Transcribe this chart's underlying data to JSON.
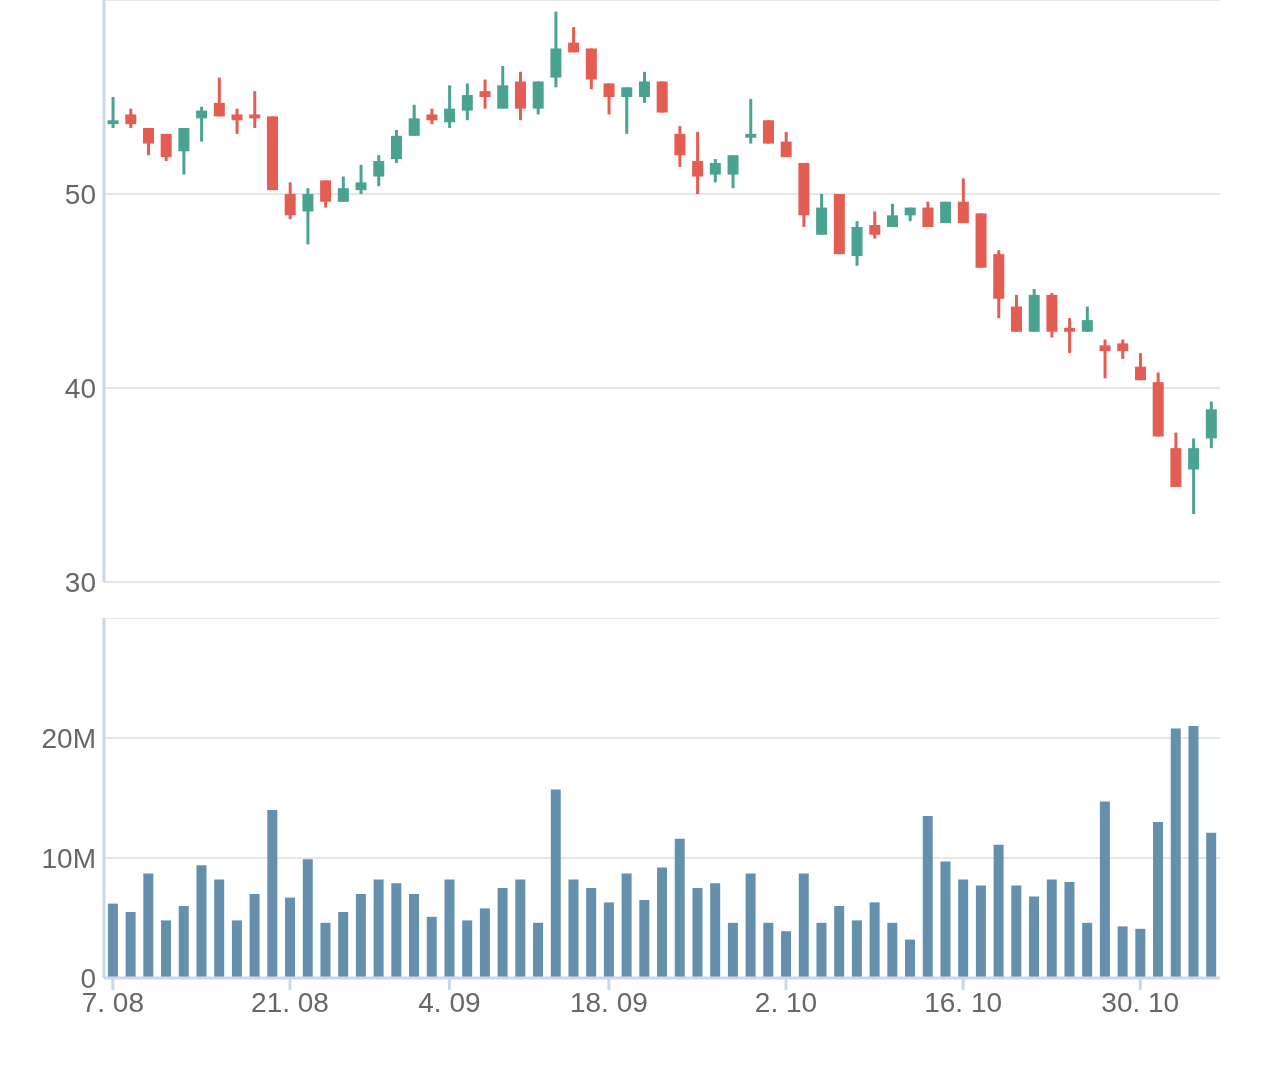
{
  "chart_data": [
    {
      "type": "candlestick",
      "categories": [
        null,
        null,
        null,
        null,
        null,
        null,
        null,
        null,
        null,
        null,
        null,
        null,
        null,
        null,
        null,
        null,
        null,
        null,
        null,
        null,
        null,
        null,
        null,
        null,
        null,
        null,
        null,
        null,
        null,
        null,
        null,
        null,
        null,
        null,
        null,
        null,
        null,
        null,
        null,
        null,
        null,
        null,
        null,
        null,
        null,
        null,
        null,
        null,
        null,
        null,
        null,
        null,
        null,
        null,
        null,
        null,
        null,
        null,
        null,
        null,
        null,
        null,
        null
      ],
      "ohlc": [
        [
          53.6,
          55.0,
          53.4,
          53.8
        ],
        [
          54.1,
          54.4,
          53.4,
          53.6
        ],
        [
          53.4,
          53.4,
          52.0,
          52.6
        ],
        [
          53.1,
          53.1,
          51.7,
          51.9
        ],
        [
          52.2,
          53.4,
          51.0,
          53.4
        ],
        [
          53.9,
          54.5,
          52.7,
          54.3
        ],
        [
          54.7,
          56.0,
          54.0,
          54.0
        ],
        [
          54.1,
          54.4,
          53.1,
          53.8
        ],
        [
          54.1,
          55.3,
          53.4,
          53.9
        ],
        [
          54.0,
          54.0,
          50.2,
          50.2
        ],
        [
          50.0,
          50.6,
          48.7,
          48.9
        ],
        [
          49.1,
          50.3,
          47.4,
          50.0
        ],
        [
          50.7,
          50.7,
          49.3,
          49.6
        ],
        [
          49.6,
          50.9,
          49.6,
          50.3
        ],
        [
          50.2,
          51.5,
          50.0,
          50.6
        ],
        [
          50.9,
          52.0,
          50.4,
          51.7
        ],
        [
          51.8,
          53.3,
          51.6,
          53.0
        ],
        [
          53.0,
          54.6,
          53.0,
          53.9
        ],
        [
          54.1,
          54.4,
          53.6,
          53.8
        ],
        [
          53.7,
          55.6,
          53.4,
          54.4
        ],
        [
          54.3,
          55.7,
          53.8,
          55.1
        ],
        [
          55.3,
          55.9,
          54.4,
          55.0
        ],
        [
          54.4,
          56.6,
          54.4,
          55.6
        ],
        [
          55.8,
          56.3,
          53.8,
          54.4
        ],
        [
          54.4,
          55.8,
          54.1,
          55.8
        ],
        [
          56.0,
          59.4,
          55.5,
          57.5
        ],
        [
          57.8,
          58.6,
          57.3,
          57.3
        ],
        [
          57.5,
          57.5,
          55.4,
          55.9
        ],
        [
          55.7,
          55.7,
          54.1,
          55.0
        ],
        [
          55.0,
          55.5,
          53.1,
          55.5
        ],
        [
          55.0,
          56.3,
          54.7,
          55.8
        ],
        [
          55.8,
          55.8,
          54.2,
          54.2
        ],
        [
          53.1,
          53.5,
          51.4,
          52.0
        ],
        [
          51.7,
          53.2,
          50.0,
          50.9
        ],
        [
          51.0,
          51.8,
          50.6,
          51.6
        ],
        [
          51.0,
          52.0,
          50.3,
          52.0
        ],
        [
          52.9,
          54.9,
          52.6,
          53.1
        ],
        [
          53.8,
          53.8,
          52.6,
          52.6
        ],
        [
          52.7,
          53.2,
          51.9,
          51.9
        ],
        [
          51.6,
          51.6,
          48.3,
          48.9
        ],
        [
          47.9,
          50.0,
          47.9,
          49.3
        ],
        [
          50.0,
          50.0,
          46.9,
          46.9
        ],
        [
          46.8,
          48.6,
          46.3,
          48.3
        ],
        [
          48.4,
          49.1,
          47.7,
          47.9
        ],
        [
          48.3,
          49.5,
          48.3,
          48.9
        ],
        [
          48.9,
          49.3,
          48.6,
          49.3
        ],
        [
          49.3,
          49.6,
          48.3,
          48.3
        ],
        [
          48.5,
          49.6,
          48.5,
          49.6
        ],
        [
          49.6,
          50.8,
          48.5,
          48.5
        ],
        [
          49.0,
          49.0,
          46.2,
          46.2
        ],
        [
          46.9,
          47.1,
          43.6,
          44.6
        ],
        [
          44.2,
          44.8,
          42.9,
          42.9
        ],
        [
          42.9,
          45.1,
          42.9,
          44.8
        ],
        [
          44.8,
          44.9,
          42.6,
          42.9
        ],
        [
          43.1,
          43.6,
          41.8,
          42.9
        ],
        [
          42.9,
          44.2,
          42.9,
          43.5
        ],
        [
          42.2,
          42.5,
          40.5,
          41.9
        ],
        [
          42.3,
          42.5,
          41.5,
          41.9
        ],
        [
          41.1,
          41.8,
          40.4,
          40.4
        ],
        [
          40.3,
          40.8,
          37.5,
          37.5
        ],
        [
          36.9,
          37.7,
          34.9,
          34.9
        ],
        [
          35.8,
          37.4,
          33.5,
          36.9
        ],
        [
          37.4,
          39.3,
          36.9,
          38.9
        ]
      ],
      "colors": [
        "#4aa391",
        "#e35d52",
        "#e35d52",
        "#e35d52",
        "#4aa391",
        "#4aa391",
        "#e35d52",
        "#e35d52",
        "#e35d52",
        "#e35d52",
        "#e35d52",
        "#4aa391",
        "#e35d52",
        "#4aa391",
        "#4aa391",
        "#4aa391",
        "#4aa391",
        "#4aa391",
        "#e35d52",
        "#4aa391",
        "#4aa391",
        "#e35d52",
        "#4aa391",
        "#e35d52",
        "#4aa391",
        "#4aa391",
        "#e35d52",
        "#e35d52",
        "#e35d52",
        "#4aa391",
        "#4aa391",
        "#e35d52",
        "#e35d52",
        "#e35d52",
        "#4aa391",
        "#4aa391",
        "#4aa391",
        "#e35d52",
        "#e35d52",
        "#e35d52",
        "#4aa391",
        "#e35d52",
        "#4aa391",
        "#e35d52",
        "#4aa391",
        "#4aa391",
        "#e35d52",
        "#4aa391",
        "#e35d52",
        "#e35d52",
        "#e35d52",
        "#e35d52",
        "#4aa391",
        "#e35d52",
        "#e35d52",
        "#4aa391",
        "#e35d52",
        "#e35d52",
        "#e35d52",
        "#e35d52",
        "#e35d52",
        "#4aa391",
        "#4aa391"
      ],
      "ylim": [
        30,
        60
      ],
      "yticks": [
        30,
        40,
        50
      ],
      "grid": "y",
      "tick_labels": "y"
    },
    {
      "type": "bar",
      "categories": [
        "7. 08",
        null,
        null,
        null,
        null,
        null,
        null,
        null,
        null,
        null,
        "21. 08",
        null,
        null,
        null,
        null,
        null,
        null,
        null,
        null,
        "4. 09",
        null,
        null,
        null,
        null,
        null,
        null,
        null,
        null,
        "18. 09",
        null,
        null,
        null,
        null,
        null,
        null,
        null,
        null,
        null,
        "2. 10",
        null,
        null,
        null,
        null,
        null,
        null,
        null,
        null,
        null,
        "16. 10",
        null,
        null,
        null,
        null,
        null,
        null,
        null,
        null,
        null,
        "30. 10",
        null,
        null,
        null,
        null
      ],
      "values": [
        6200000,
        5500000,
        8700000,
        4800000,
        6000000,
        9400000,
        8200000,
        4800000,
        7000000,
        14000000,
        6700000,
        9900000,
        4600000,
        5500000,
        7000000,
        8200000,
        7900000,
        7000000,
        5100000,
        8200000,
        4800000,
        5800000,
        7500000,
        8200000,
        4600000,
        15700000,
        8200000,
        7500000,
        6300000,
        8700000,
        6500000,
        9200000,
        11600000,
        7500000,
        7900000,
        4600000,
        8700000,
        4600000,
        3900000,
        8700000,
        4600000,
        6000000,
        4800000,
        6300000,
        4600000,
        3200000,
        13500000,
        9700000,
        8200000,
        7700000,
        11100000,
        7700000,
        6800000,
        8200000,
        8000000,
        4600000,
        14700000,
        4300000,
        4100000,
        13000000,
        20800000,
        21000000,
        12100000
      ],
      "color": "#6490ad",
      "ylim": [
        0,
        30000000
      ],
      "yticks": [
        {
          "value": 0,
          "label": "0"
        },
        {
          "value": 10000000,
          "label": "10M"
        },
        {
          "value": 20000000,
          "label": "20M"
        }
      ],
      "grid": "y"
    }
  ]
}
